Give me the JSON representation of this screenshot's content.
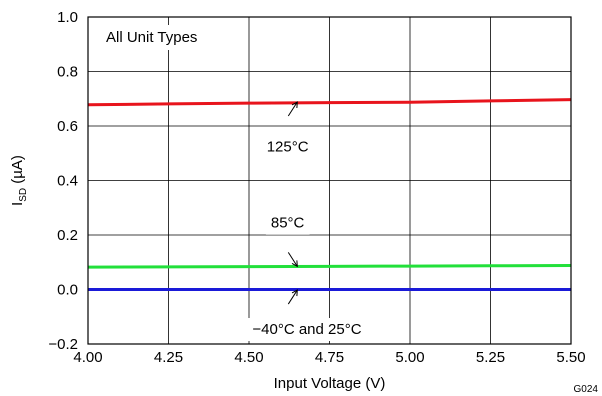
{
  "chart_data": {
    "type": "line",
    "annotation_top": "All Unit Types",
    "xlabel": "Input Voltage (V)",
    "ylabel_main": "I",
    "ylabel_sub": "SD",
    "ylabel_unit": " (µA)",
    "figure_id": "G024",
    "xlim": [
      4.0,
      5.5
    ],
    "ylim": [
      -0.2,
      1.0
    ],
    "x_ticks": [
      4.0,
      4.25,
      4.5,
      4.75,
      5.0,
      5.25,
      5.5
    ],
    "x_tick_labels": [
      "4.00",
      "4.25",
      "4.50",
      "4.75",
      "5.00",
      "5.25",
      "5.50"
    ],
    "y_ticks": [
      -0.2,
      0.0,
      0.2,
      0.4,
      0.6,
      0.8,
      1.0
    ],
    "y_tick_labels": [
      "−0.2",
      "0.0",
      "0.2",
      "0.4",
      "0.6",
      "0.8",
      "1.0"
    ],
    "grid": true,
    "series": [
      {
        "name": "125°C",
        "color": "#e8141c",
        "x": [
          4.0,
          4.25,
          4.5,
          4.75,
          5.0,
          5.25,
          5.5
        ],
        "values": [
          0.678,
          0.681,
          0.684,
          0.686,
          0.687,
          0.692,
          0.697
        ],
        "label_value": [
          4.62,
          0.525
        ],
        "arrow_to": [
          4.65,
          0.688
        ]
      },
      {
        "name": "85°C",
        "color": "#22e03a",
        "x": [
          4.0,
          4.25,
          4.5,
          4.75,
          5.0,
          5.25,
          5.5
        ],
        "values": [
          0.082,
          0.083,
          0.084,
          0.085,
          0.086,
          0.087,
          0.088
        ],
        "label_value": [
          4.62,
          0.245
        ],
        "arrow_to": [
          4.65,
          0.085
        ]
      },
      {
        "name": "−40°C and 25°C",
        "color": "#1a1ad8",
        "x": [
          4.0,
          4.25,
          4.5,
          4.75,
          5.0,
          5.25,
          5.5
        ],
        "values": [
          0.0,
          0.0,
          0.0,
          0.0,
          0.0,
          0.0,
          0.0
        ],
        "label_value": [
          4.68,
          -0.145
        ],
        "arrow_to": [
          4.65,
          -0.002
        ]
      }
    ]
  }
}
